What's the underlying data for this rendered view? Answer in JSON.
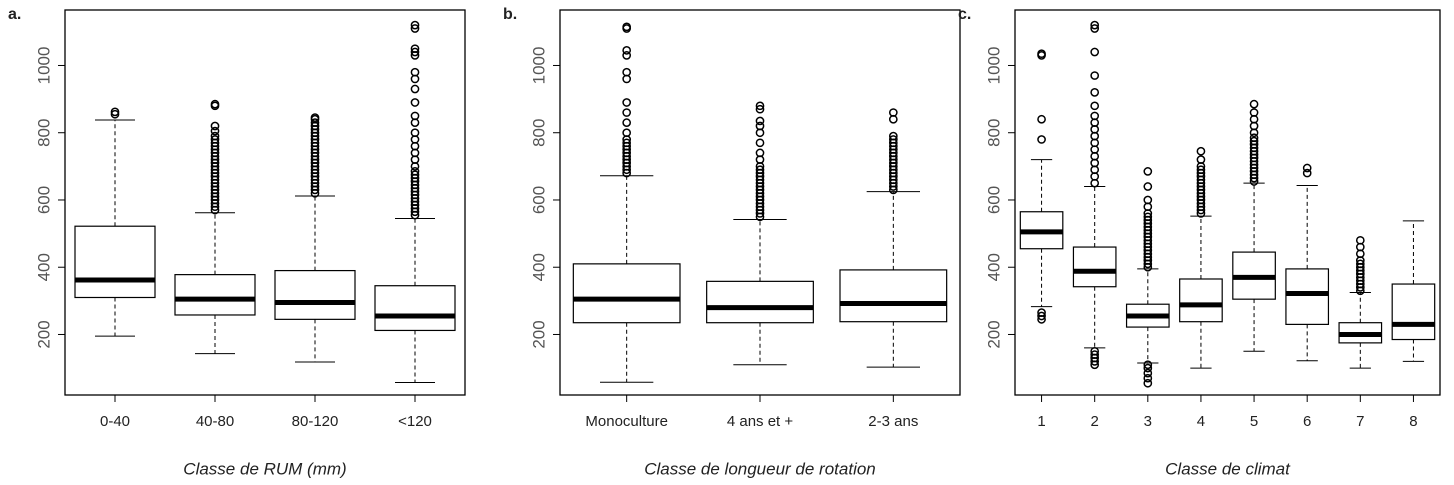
{
  "chart_data": [
    {
      "type": "box",
      "label": "a.",
      "xlabel": "Classe de RUM (mm)",
      "categories": [
        "0-40",
        "40-80",
        "80-120",
        "<120"
      ],
      "ylim": [
        20,
        1165
      ],
      "yticks": [
        200,
        400,
        600,
        800,
        1000
      ],
      "boxes": [
        {
          "whislo": 195,
          "q1": 310,
          "median": 362,
          "q3": 522,
          "whishi": 838,
          "fliers": [
            855,
            862
          ]
        },
        {
          "whislo": 143,
          "q1": 258,
          "median": 305,
          "q3": 378,
          "whishi": 562,
          "fliers": [
            570,
            580,
            590,
            600,
            610,
            620,
            630,
            640,
            650,
            660,
            670,
            680,
            690,
            700,
            710,
            720,
            730,
            740,
            750,
            760,
            770,
            780,
            790,
            805,
            820,
            880,
            885
          ]
        },
        {
          "whislo": 118,
          "q1": 245,
          "median": 295,
          "q3": 390,
          "whishi": 612,
          "fliers": [
            620,
            630,
            640,
            650,
            660,
            670,
            680,
            690,
            700,
            710,
            720,
            730,
            740,
            750,
            760,
            770,
            780,
            790,
            800,
            810,
            820,
            830,
            840,
            845
          ]
        },
        {
          "whislo": 57,
          "q1": 212,
          "median": 255,
          "q3": 345,
          "whishi": 545,
          "fliers": [
            555,
            565,
            575,
            585,
            595,
            605,
            615,
            625,
            635,
            645,
            655,
            665,
            675,
            685,
            700,
            720,
            740,
            760,
            780,
            800,
            830,
            850,
            890,
            930,
            960,
            980,
            1030,
            1040,
            1050,
            1110,
            1120
          ]
        }
      ]
    },
    {
      "type": "box",
      "label": "b.",
      "xlabel": "Classe de longueur de rotation",
      "categories": [
        "Monoculture",
        "4 ans et +",
        "2-3 ans"
      ],
      "ylim": [
        20,
        1165
      ],
      "yticks": [
        200,
        400,
        600,
        800,
        1000
      ],
      "boxes": [
        {
          "whislo": 58,
          "q1": 235,
          "median": 305,
          "q3": 410,
          "whishi": 672,
          "fliers": [
            680,
            690,
            700,
            710,
            720,
            730,
            740,
            750,
            760,
            770,
            780,
            800,
            830,
            860,
            890,
            960,
            980,
            1030,
            1045,
            1110,
            1115
          ]
        },
        {
          "whislo": 110,
          "q1": 235,
          "median": 280,
          "q3": 358,
          "whishi": 542,
          "fliers": [
            550,
            560,
            570,
            580,
            590,
            600,
            610,
            620,
            630,
            640,
            650,
            660,
            670,
            680,
            690,
            700,
            720,
            740,
            770,
            800,
            820,
            835,
            870,
            880
          ]
        },
        {
          "whislo": 103,
          "q1": 238,
          "median": 292,
          "q3": 392,
          "whishi": 625,
          "fliers": [
            630,
            640,
            650,
            660,
            670,
            680,
            690,
            700,
            710,
            720,
            730,
            740,
            750,
            760,
            770,
            780,
            790,
            840,
            860
          ]
        }
      ]
    },
    {
      "type": "box",
      "label": "c.",
      "xlabel": "Classe de climat",
      "categories": [
        "1",
        "2",
        "3",
        "4",
        "5",
        "6",
        "7",
        "8"
      ],
      "ylim": [
        20,
        1165
      ],
      "yticks": [
        200,
        400,
        600,
        800,
        1000
      ],
      "boxes": [
        {
          "whislo": 283,
          "q1": 455,
          "median": 505,
          "q3": 565,
          "whishi": 720,
          "fliers": [
            245,
            255,
            265,
            780,
            840,
            1030,
            1035
          ]
        },
        {
          "whislo": 160,
          "q1": 342,
          "median": 388,
          "q3": 460,
          "whishi": 640,
          "fliers": [
            110,
            120,
            130,
            140,
            150,
            650,
            670,
            690,
            710,
            730,
            750,
            770,
            790,
            810,
            830,
            850,
            880,
            920,
            970,
            1040,
            1110,
            1120
          ]
        },
        {
          "whislo": 115,
          "q1": 222,
          "median": 255,
          "q3": 290,
          "whishi": 395,
          "fliers": [
            55,
            70,
            85,
            100,
            110,
            400,
            410,
            420,
            430,
            440,
            450,
            460,
            470,
            480,
            490,
            500,
            510,
            520,
            530,
            540,
            550,
            560,
            580,
            600,
            640,
            685
          ]
        },
        {
          "whislo": 100,
          "q1": 238,
          "median": 288,
          "q3": 365,
          "whishi": 552,
          "fliers": [
            560,
            570,
            580,
            590,
            600,
            610,
            620,
            630,
            640,
            650,
            660,
            670,
            680,
            690,
            700,
            720,
            745
          ]
        },
        {
          "whislo": 150,
          "q1": 305,
          "median": 370,
          "q3": 445,
          "whishi": 650,
          "fliers": [
            655,
            665,
            675,
            685,
            695,
            705,
            715,
            725,
            735,
            745,
            755,
            765,
            775,
            785,
            800,
            820,
            840,
            860,
            885
          ]
        },
        {
          "whislo": 122,
          "q1": 230,
          "median": 322,
          "q3": 395,
          "whishi": 643,
          "fliers": [
            680,
            695
          ]
        },
        {
          "whislo": 100,
          "q1": 175,
          "median": 200,
          "q3": 235,
          "whishi": 325,
          "fliers": [
            330,
            340,
            350,
            360,
            370,
            380,
            390,
            400,
            410,
            420,
            440,
            460,
            480
          ]
        },
        {
          "whislo": 120,
          "q1": 185,
          "median": 230,
          "q3": 350,
          "whishi": 538,
          "fliers": []
        }
      ]
    }
  ]
}
